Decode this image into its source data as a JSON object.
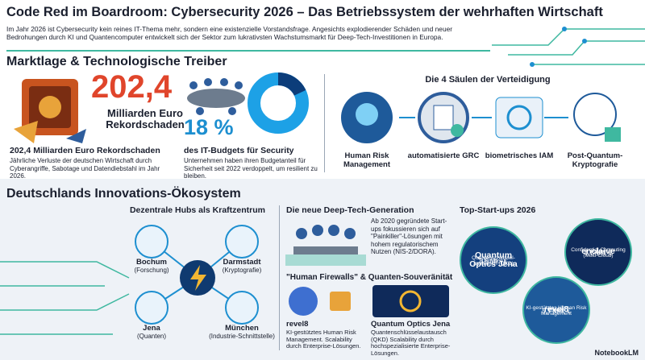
{
  "header": {
    "title": "Code Red im Boardroom: Cybersecurity 2026 – Das Betriebssystem der wehrhaften Wirtschaft",
    "intro": "Im Jahr 2026 ist Cybersecurity kein reines IT-Thema mehr, sondern eine existenzielle Vorstandsfrage. Angesichts explodierender Schäden und neuer Bedrohungen durch KI und Quantencomputer entwickelt sich der Sektor zum lukrativsten Wachstumsmarkt für Deep-Tech-Investitionen in Europa."
  },
  "market": {
    "heading": "Marktlage & Technologische Treiber",
    "damage": {
      "big": "202,4",
      "unit": "Milliarden Euro Rekordschaden",
      "title": "202,4 Milliarden Euro Rekordschaden",
      "text": "Jährliche Verluste der deutschen Wirtschaft durch Cyberangriffe, Sabotage und Datendiebstahl im Jahr 2026."
    },
    "budget": {
      "value": 18,
      "label": "18 %",
      "title": "des IT-Budgets für Security",
      "text": "Unternehmen haben ihren Budgetanteil für Sicherheit seit 2022 verdoppelt, um resilient zu bleiben."
    },
    "pillars": {
      "heading": "Die 4 Säulen der Verteidigung",
      "items": [
        "Human Risk Management",
        "automatisierte GRC",
        "biometrisches IAM",
        "Post-Quantum-Kryptografie"
      ]
    }
  },
  "ecosystem": {
    "heading": "Deutschlands Innovations-Ökosystem",
    "hubs": {
      "heading": "Dezentrale Hubs als Kraftzentrum",
      "items": [
        {
          "city": "Bochum",
          "focus": "(Forschung)"
        },
        {
          "city": "Darmstadt",
          "focus": "(Kryptografie)"
        },
        {
          "city": "Jena",
          "focus": "(Quanten)"
        },
        {
          "city": "München",
          "focus": "(Industrie-Schnittstelle)"
        }
      ]
    },
    "deeptech": {
      "heading": "Die neue Deep-Tech-Generation",
      "text": "Ab 2020 gegründete Start-ups fokussieren sich auf \"Painkiller\"-Lösungen mit hohem regulatorischem Nutzen (NIS-2/DORA)."
    },
    "firewalls": {
      "heading": "\"Human Firewalls\" & Quanten-Souveränität",
      "items": [
        {
          "name": "revel8",
          "text": "KI-gestütztes Human Risk Management. Scalability durch Enterprise-Lösungen."
        },
        {
          "name": "Quantum Optics Jena",
          "text": "Quantenschlüsselaustausch (QKD) Scalability durch hochspezialisierte Enterprise-Lösungen."
        }
      ]
    },
    "startups": {
      "heading": "Top-Start-ups 2026",
      "items": [
        {
          "name": "Quantum Optics Jena",
          "text": "Quantenschlüssel-austausch (QKD)",
          "amount": "8,5 Mio. €",
          "round": "(Series A)"
        },
        {
          "name": "enclaive",
          "text": "Confidential Computing (Multi-Cloud)",
          "amount": "4,1 Mio. €",
          "round": "(Seed)"
        },
        {
          "name": "revel8",
          "text": "KI-gestütztes Human Risk Management",
          "amount": "5,7 Mio. €",
          "round": "(Seed)"
        }
      ]
    }
  },
  "footer": {
    "brand": "NotebookLM"
  }
}
